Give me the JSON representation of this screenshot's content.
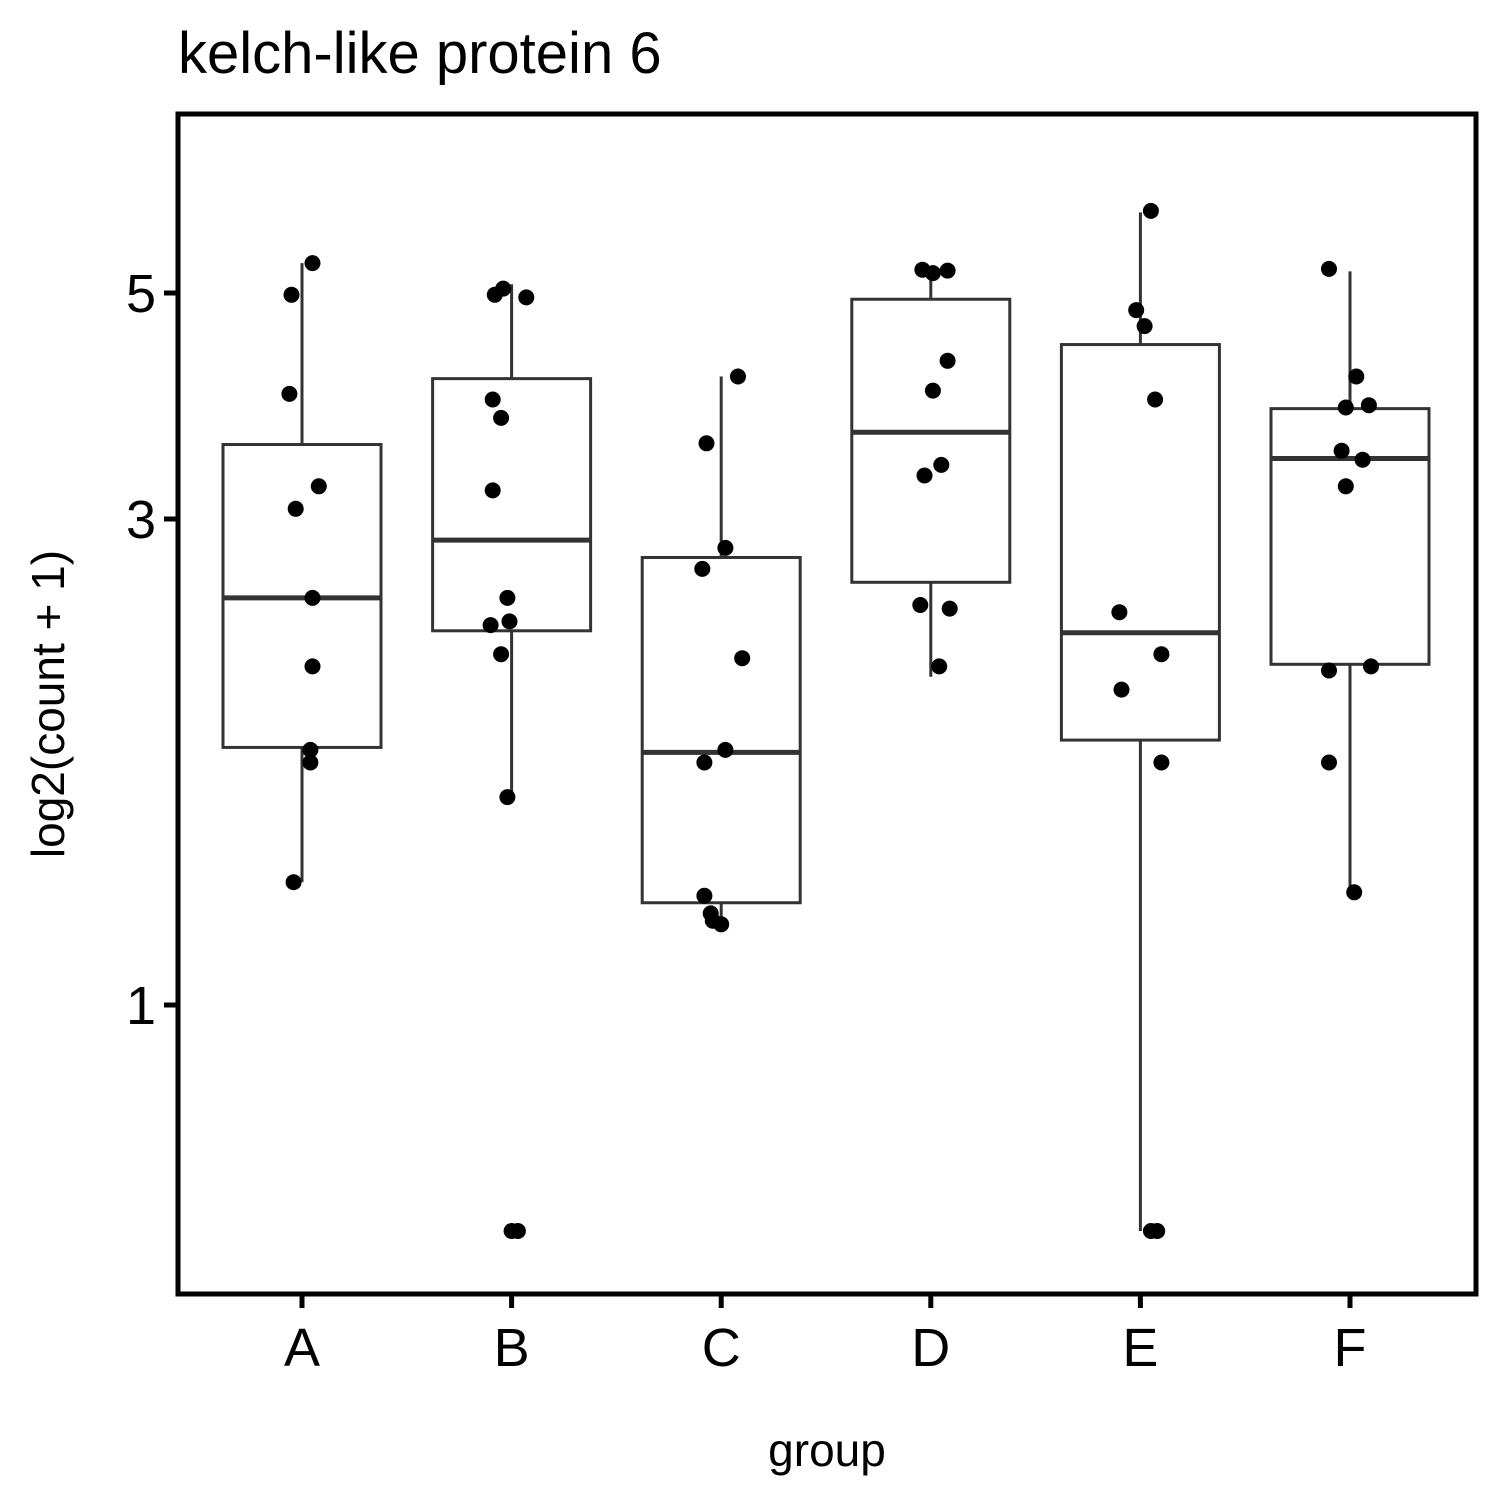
{
  "chart_data": {
    "type": "boxplot",
    "title": "kelch-like protein 6",
    "xlabel": "group",
    "ylabel": "log2(count + 1)",
    "y_scale": "log",
    "ylim": [
      0.55,
      6.6
    ],
    "y_ticks": [
      1,
      3,
      5
    ],
    "categories": [
      "A",
      "B",
      "C",
      "D",
      "E",
      "F"
    ],
    "boxes": [
      {
        "group": "A",
        "whisker_low": 1.32,
        "q1": 1.79,
        "median": 2.51,
        "q3": 3.55,
        "whisker_high": 5.35
      },
      {
        "group": "B",
        "whisker_low": 1.6,
        "q1": 2.33,
        "median": 2.86,
        "q3": 4.12,
        "whisker_high": 5.1
      },
      {
        "group": "C",
        "whisker_low": 1.22,
        "q1": 1.26,
        "median": 1.77,
        "q3": 2.75,
        "whisker_high": 4.14
      },
      {
        "group": "D",
        "whisker_low": 2.1,
        "q1": 2.6,
        "median": 3.65,
        "q3": 4.93,
        "whisker_high": 5.25
      },
      {
        "group": "E",
        "whisker_low": 0.6,
        "q1": 1.82,
        "median": 2.32,
        "q3": 4.45,
        "whisker_high": 6.0
      },
      {
        "group": "F",
        "whisker_low": 1.3,
        "q1": 2.16,
        "median": 3.44,
        "q3": 3.85,
        "whisker_high": 5.25
      }
    ],
    "points": [
      {
        "group": "A",
        "offset": 0.05,
        "y": 5.35
      },
      {
        "group": "A",
        "offset": -0.05,
        "y": 4.98
      },
      {
        "group": "A",
        "offset": -0.06,
        "y": 3.98
      },
      {
        "group": "A",
        "offset": 0.08,
        "y": 3.23
      },
      {
        "group": "A",
        "offset": -0.03,
        "y": 3.07
      },
      {
        "group": "A",
        "offset": 0.05,
        "y": 2.51
      },
      {
        "group": "A",
        "offset": 0.05,
        "y": 2.15
      },
      {
        "group": "A",
        "offset": 0.04,
        "y": 1.78
      },
      {
        "group": "A",
        "offset": 0.04,
        "y": 1.73
      },
      {
        "group": "A",
        "offset": -0.04,
        "y": 1.32
      },
      {
        "group": "B",
        "offset": -0.08,
        "y": 4.98
      },
      {
        "group": "B",
        "offset": -0.04,
        "y": 5.05
      },
      {
        "group": "B",
        "offset": 0.07,
        "y": 4.95
      },
      {
        "group": "B",
        "offset": -0.09,
        "y": 3.93
      },
      {
        "group": "B",
        "offset": -0.05,
        "y": 3.77
      },
      {
        "group": "B",
        "offset": -0.09,
        "y": 3.2
      },
      {
        "group": "B",
        "offset": -0.02,
        "y": 2.51
      },
      {
        "group": "B",
        "offset": -0.01,
        "y": 2.38
      },
      {
        "group": "B",
        "offset": -0.1,
        "y": 2.36
      },
      {
        "group": "B",
        "offset": -0.05,
        "y": 2.21
      },
      {
        "group": "B",
        "offset": -0.02,
        "y": 1.6
      },
      {
        "group": "B",
        "offset": 0.0,
        "y": 0.6
      },
      {
        "group": "B",
        "offset": 0.03,
        "y": 0.6
      },
      {
        "group": "C",
        "offset": 0.08,
        "y": 4.14
      },
      {
        "group": "C",
        "offset": -0.07,
        "y": 3.56
      },
      {
        "group": "C",
        "offset": 0.02,
        "y": 2.81
      },
      {
        "group": "C",
        "offset": -0.09,
        "y": 2.68
      },
      {
        "group": "C",
        "offset": 0.1,
        "y": 2.19
      },
      {
        "group": "C",
        "offset": 0.02,
        "y": 1.78
      },
      {
        "group": "C",
        "offset": -0.08,
        "y": 1.73
      },
      {
        "group": "C",
        "offset": -0.08,
        "y": 1.28
      },
      {
        "group": "C",
        "offset": -0.05,
        "y": 1.23
      },
      {
        "group": "C",
        "offset": -0.04,
        "y": 1.21
      },
      {
        "group": "C",
        "offset": 0.0,
        "y": 1.2
      },
      {
        "group": "D",
        "offset": -0.04,
        "y": 5.27
      },
      {
        "group": "D",
        "offset": 0.01,
        "y": 5.23
      },
      {
        "group": "D",
        "offset": 0.08,
        "y": 5.26
      },
      {
        "group": "D",
        "offset": 0.08,
        "y": 4.29
      },
      {
        "group": "D",
        "offset": 0.01,
        "y": 4.01
      },
      {
        "group": "D",
        "offset": 0.05,
        "y": 3.39
      },
      {
        "group": "D",
        "offset": -0.03,
        "y": 3.31
      },
      {
        "group": "D",
        "offset": -0.05,
        "y": 2.47
      },
      {
        "group": "D",
        "offset": 0.09,
        "y": 2.45
      },
      {
        "group": "D",
        "offset": 0.04,
        "y": 2.15
      },
      {
        "group": "E",
        "offset": 0.05,
        "y": 6.02
      },
      {
        "group": "E",
        "offset": -0.02,
        "y": 4.81
      },
      {
        "group": "E",
        "offset": 0.02,
        "y": 4.64
      },
      {
        "group": "E",
        "offset": 0.07,
        "y": 3.93
      },
      {
        "group": "E",
        "offset": -0.1,
        "y": 2.43
      },
      {
        "group": "E",
        "offset": 0.1,
        "y": 2.21
      },
      {
        "group": "E",
        "offset": -0.09,
        "y": 2.04
      },
      {
        "group": "E",
        "offset": 0.1,
        "y": 1.73
      },
      {
        "group": "E",
        "offset": 0.05,
        "y": 0.6
      },
      {
        "group": "E",
        "offset": 0.08,
        "y": 0.6
      },
      {
        "group": "F",
        "offset": -0.1,
        "y": 5.28
      },
      {
        "group": "F",
        "offset": 0.03,
        "y": 4.14
      },
      {
        "group": "F",
        "offset": -0.02,
        "y": 3.86
      },
      {
        "group": "F",
        "offset": 0.09,
        "y": 3.88
      },
      {
        "group": "F",
        "offset": -0.04,
        "y": 3.5
      },
      {
        "group": "F",
        "offset": 0.06,
        "y": 3.43
      },
      {
        "group": "F",
        "offset": -0.02,
        "y": 3.23
      },
      {
        "group": "F",
        "offset": -0.1,
        "y": 2.13
      },
      {
        "group": "F",
        "offset": 0.1,
        "y": 2.15
      },
      {
        "group": "F",
        "offset": -0.1,
        "y": 1.73
      },
      {
        "group": "F",
        "offset": 0.02,
        "y": 1.29
      }
    ]
  }
}
